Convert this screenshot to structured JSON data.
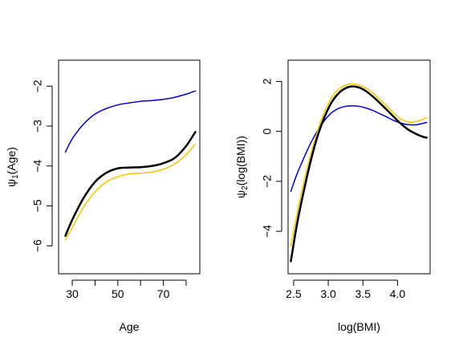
{
  "chart_data": [
    {
      "type": "line",
      "xlabel": "Age",
      "ylabel": {
        "prefix": "ψ",
        "sub": "1",
        "suffix": "(Age)"
      },
      "xlim": [
        24,
        86
      ],
      "ylim": [
        -6.7,
        -1.35
      ],
      "x_ticks": [
        30,
        40,
        50,
        60,
        70,
        80
      ],
      "x_tick_labels": [
        "30",
        "",
        "50",
        "",
        "70",
        ""
      ],
      "y_ticks": [
        -6,
        -5,
        -4,
        -3,
        -2
      ],
      "y_tick_labels": [
        "−6",
        "−5",
        "−4",
        "−3",
        "−2"
      ],
      "series": [
        {
          "color": "#0000cc",
          "width": 1.5,
          "x": [
            27,
            30,
            35,
            40,
            45,
            50,
            55,
            60,
            65,
            70,
            75,
            80,
            84
          ],
          "y": [
            -3.65,
            -3.32,
            -2.95,
            -2.7,
            -2.56,
            -2.47,
            -2.42,
            -2.38,
            -2.36,
            -2.33,
            -2.28,
            -2.2,
            -2.12
          ]
        },
        {
          "color": "#f5c400",
          "width": 1.5,
          "x": [
            27,
            30,
            35,
            40,
            45,
            50,
            55,
            60,
            65,
            70,
            75,
            80,
            84
          ],
          "y": [
            -5.85,
            -5.55,
            -5.03,
            -4.65,
            -4.4,
            -4.27,
            -4.2,
            -4.18,
            -4.15,
            -4.08,
            -3.95,
            -3.72,
            -3.45
          ]
        },
        {
          "color": "#000000",
          "width": 2.5,
          "x": [
            27,
            30,
            35,
            40,
            45,
            50,
            55,
            60,
            65,
            70,
            75,
            80,
            84
          ],
          "y": [
            -5.75,
            -5.35,
            -4.8,
            -4.4,
            -4.17,
            -4.06,
            -4.04,
            -4.03,
            -4.0,
            -3.93,
            -3.8,
            -3.5,
            -3.15
          ]
        }
      ]
    },
    {
      "type": "line",
      "xlabel": "log(BMI)",
      "ylabel": {
        "prefix": "ψ",
        "sub": "2",
        "suffix": "(log(BMI))"
      },
      "xlim": [
        2.42,
        4.47
      ],
      "ylim": [
        -5.7,
        2.85
      ],
      "x_ticks": [
        2.5,
        3.0,
        3.5,
        4.0
      ],
      "x_tick_labels": [
        "2.5",
        "3.0",
        "3.5",
        "4.0"
      ],
      "y_ticks": [
        -4,
        -2,
        0,
        2
      ],
      "y_tick_labels": [
        "−4",
        "−2",
        "0",
        "2"
      ],
      "series": [
        {
          "color": "#0000cc",
          "width": 1.5,
          "x": [
            2.46,
            2.55,
            2.65,
            2.75,
            2.85,
            2.95,
            3.05,
            3.15,
            3.25,
            3.35,
            3.45,
            3.55,
            3.65,
            3.75,
            3.85,
            3.95,
            4.05,
            4.15,
            4.25,
            4.35,
            4.42
          ],
          "y": [
            -2.4,
            -1.7,
            -1.05,
            -0.45,
            0.05,
            0.45,
            0.75,
            0.92,
            1.0,
            1.02,
            1.0,
            0.93,
            0.83,
            0.7,
            0.57,
            0.43,
            0.33,
            0.27,
            0.26,
            0.31,
            0.36
          ]
        },
        {
          "color": "#f5c400",
          "width": 1.5,
          "x": [
            2.46,
            2.55,
            2.65,
            2.75,
            2.85,
            2.95,
            3.05,
            3.15,
            3.25,
            3.35,
            3.45,
            3.55,
            3.65,
            3.75,
            3.85,
            3.95,
            4.05,
            4.15,
            4.25,
            4.35,
            4.42
          ],
          "y": [
            -4.6,
            -3.3,
            -2.0,
            -0.9,
            0.05,
            0.8,
            1.35,
            1.68,
            1.85,
            1.9,
            1.85,
            1.72,
            1.52,
            1.27,
            1.0,
            0.72,
            0.5,
            0.38,
            0.38,
            0.47,
            0.55
          ]
        },
        {
          "color": "#000000",
          "width": 2.5,
          "x": [
            2.46,
            2.55,
            2.65,
            2.75,
            2.85,
            2.95,
            3.05,
            3.15,
            3.25,
            3.35,
            3.45,
            3.55,
            3.65,
            3.75,
            3.85,
            3.95,
            4.05,
            4.15,
            4.25,
            4.35,
            4.42
          ],
          "y": [
            -5.2,
            -3.7,
            -2.35,
            -1.15,
            -0.15,
            0.6,
            1.17,
            1.53,
            1.73,
            1.8,
            1.75,
            1.6,
            1.38,
            1.12,
            0.85,
            0.57,
            0.3,
            0.08,
            -0.08,
            -0.2,
            -0.25
          ]
        }
      ]
    }
  ]
}
